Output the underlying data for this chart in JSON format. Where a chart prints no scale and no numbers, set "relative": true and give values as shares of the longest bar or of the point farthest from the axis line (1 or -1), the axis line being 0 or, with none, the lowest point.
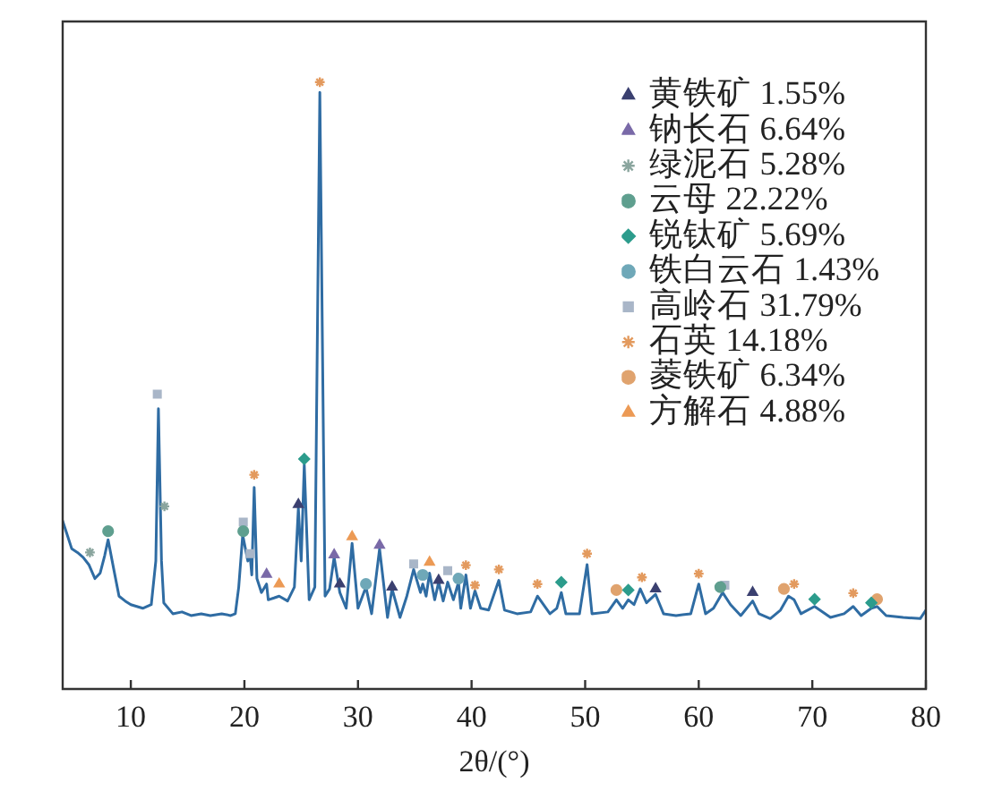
{
  "chart_data": {
    "type": "line",
    "xlabel": "2θ/(°)",
    "relative": true,
    "xlim": [
      4,
      80
    ],
    "xticks": [
      10,
      20,
      30,
      40,
      50,
      60,
      70,
      80
    ],
    "grid": false,
    "legend": "top right",
    "series": [
      {
        "color": "#2f6ca3",
        "marker": "none",
        "x": [
          4.0,
          4.4,
          4.8,
          5.3,
          5.8,
          6.3,
          6.84,
          7.3,
          7.7,
          8.0,
          8.5,
          8.96,
          9.5,
          10.0,
          11.05,
          11.8,
          12.2,
          12.43,
          12.7,
          12.9,
          13.7,
          14.5,
          15.3,
          16.2,
          17.0,
          18.0,
          18.8,
          19.2,
          19.5,
          19.85,
          20.3,
          20.5,
          20.65,
          20.86,
          21.1,
          21.5,
          21.95,
          22.1,
          22.6,
          23.06,
          23.8,
          24.4,
          24.75,
          25.0,
          25.27,
          25.7,
          26.2,
          26.64,
          27.1,
          27.5,
          27.9,
          28.4,
          28.96,
          29.48,
          30.0,
          30.7,
          31.2,
          31.9,
          32.6,
          33.0,
          33.7,
          34.3,
          34.9,
          35.5,
          35.7,
          36.0,
          36.3,
          36.75,
          37.1,
          37.5,
          37.9,
          38.4,
          38.85,
          39.05,
          39.5,
          39.9,
          40.3,
          40.8,
          41.5,
          42.4,
          42.9,
          44.0,
          45.2,
          45.8,
          46.9,
          47.5,
          47.9,
          48.3,
          49.5,
          50.17,
          50.6,
          52.0,
          52.75,
          53.3,
          53.8,
          54.3,
          54.85,
          55.4,
          56.2,
          56.9,
          58.0,
          59.3,
          60.0,
          60.6,
          61.3,
          62.1,
          62.8,
          63.7,
          64.75,
          65.3,
          66.3,
          67.2,
          67.9,
          68.4,
          69.0,
          70.2,
          71.6,
          72.8,
          73.6,
          74.3,
          75.2,
          75.7,
          76.5,
          78.0,
          79.5,
          80.0
        ],
        "values": [
          0.277,
          0.254,
          0.231,
          0.225,
          0.217,
          0.205,
          0.182,
          0.191,
          0.22,
          0.246,
          0.197,
          0.153,
          0.145,
          0.139,
          0.133,
          0.139,
          0.211,
          0.462,
          0.211,
          0.142,
          0.124,
          0.127,
          0.121,
          0.124,
          0.121,
          0.124,
          0.121,
          0.124,
          0.168,
          0.254,
          0.211,
          0.22,
          0.188,
          0.332,
          0.182,
          0.159,
          0.173,
          0.147,
          0.15,
          0.153,
          0.145,
          0.168,
          0.298,
          0.211,
          0.37,
          0.147,
          0.168,
          0.983,
          0.153,
          0.165,
          0.217,
          0.159,
          0.133,
          0.24,
          0.133,
          0.168,
          0.124,
          0.231,
          0.118,
          0.165,
          0.118,
          0.153,
          0.197,
          0.159,
          0.173,
          0.153,
          0.191,
          0.147,
          0.176,
          0.145,
          0.176,
          0.147,
          0.176,
          0.133,
          0.188,
          0.133,
          0.162,
          0.133,
          0.13,
          0.179,
          0.13,
          0.124,
          0.127,
          0.153,
          0.124,
          0.133,
          0.159,
          0.124,
          0.124,
          0.205,
          0.124,
          0.127,
          0.147,
          0.133,
          0.147,
          0.139,
          0.165,
          0.142,
          0.156,
          0.124,
          0.121,
          0.124,
          0.173,
          0.124,
          0.133,
          0.159,
          0.139,
          0.121,
          0.145,
          0.124,
          0.116,
          0.13,
          0.153,
          0.147,
          0.124,
          0.136,
          0.118,
          0.124,
          0.136,
          0.121,
          0.133,
          0.136,
          0.121,
          0.118,
          0.116,
          0.13
        ]
      },
      {
        "type": "scatter",
        "name": "黄铁矿 1.55%",
        "color": "#3b4070",
        "marker": "triangle",
        "x": [
          24.75,
          28.4,
          33.0,
          37.1,
          56.2,
          64.75
        ],
        "values": [
          0.304,
          0.173,
          0.168,
          0.179,
          0.165,
          0.159
        ]
      },
      {
        "type": "scatter",
        "name": "钠长石 6.64%",
        "color": "#7a6aa8",
        "marker": "triangle",
        "x": [
          21.95,
          27.9,
          31.9
        ],
        "values": [
          0.189,
          0.221,
          0.237
        ]
      },
      {
        "type": "scatter",
        "name": "绿泥石 5.28%",
        "color": "#8aa59e",
        "marker": "cross",
        "x": [
          6.4,
          12.96
        ],
        "values": [
          0.225,
          0.301
        ]
      },
      {
        "type": "scatter",
        "name": "云母 22.22%",
        "color": "#5f9f8f",
        "marker": "circle",
        "x": [
          8.0,
          19.9,
          61.9
        ],
        "values": [
          0.26,
          0.26,
          0.168
        ]
      },
      {
        "type": "scatter",
        "name": "锐钛矿 5.69%",
        "color": "#2c9c8c",
        "marker": "diamond",
        "x": [
          25.27,
          47.9,
          53.8,
          70.2,
          75.2
        ],
        "values": [
          0.379,
          0.176,
          0.163,
          0.148,
          0.142
        ]
      },
      {
        "type": "scatter",
        "name": "铁白云石 1.43%",
        "color": "#6fa8b8",
        "marker": "circle",
        "x": [
          30.7,
          35.7,
          38.85
        ],
        "values": [
          0.173,
          0.188,
          0.182
        ]
      },
      {
        "type": "scatter",
        "name": "高岭石 31.79%",
        "color": "#a9b6c8",
        "marker": "square",
        "x": [
          12.33,
          19.9,
          20.5,
          34.9,
          37.9,
          62.3
        ],
        "values": [
          0.486,
          0.275,
          0.223,
          0.206,
          0.195,
          0.171
        ]
      },
      {
        "type": "scatter",
        "name": "石英 14.18%",
        "color": "#e39a5e",
        "marker": "cross",
        "x": [
          20.86,
          26.64,
          39.5,
          40.3,
          42.4,
          45.8,
          50.17,
          55.0,
          60.0,
          68.4,
          73.6
        ],
        "values": [
          0.353,
          1,
          0.204,
          0.171,
          0.197,
          0.173,
          0.223,
          0.184,
          0.19,
          0.173,
          0.158
        ]
      },
      {
        "type": "scatter",
        "name": "菱铁矿 6.34%",
        "color": "#e0a36e",
        "marker": "circle",
        "x": [
          52.75,
          67.5,
          75.7
        ],
        "values": [
          0.163,
          0.165,
          0.148
        ]
      },
      {
        "type": "scatter",
        "name": "方解石 4.88%",
        "color": "#ec9a55",
        "marker": "triangle",
        "x": [
          23.06,
          29.48,
          36.3
        ],
        "values": [
          0.173,
          0.251,
          0.209
        ]
      }
    ]
  }
}
